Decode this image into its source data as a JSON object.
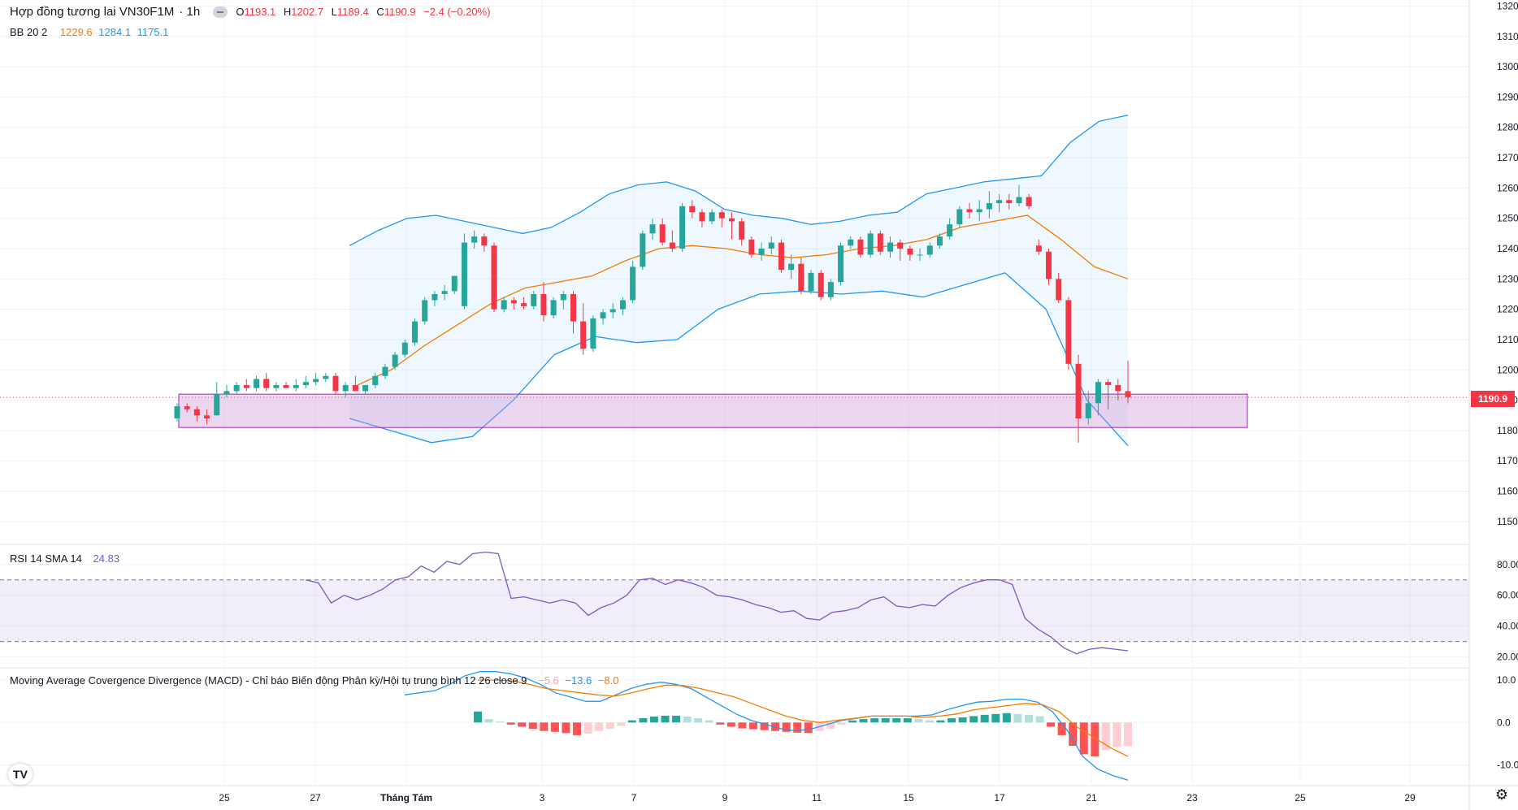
{
  "header": {
    "title": "Hợp đồng tương lai VN30F1M",
    "interval": "· 1h",
    "ohlc": {
      "o_label": "O",
      "o": "1193.1",
      "h_label": "H",
      "h": "1202.7",
      "l_label": "L",
      "l": "1189.4",
      "c_label": "C",
      "c": "1190.9",
      "change": "−2.4 (−0.20%)"
    }
  },
  "bb_legend": {
    "name": "BB 20 2",
    "mid": "1229.6",
    "upper": "1284.1",
    "lower": "1175.1"
  },
  "rsi_legend": {
    "name": "RSI 14 SMA 14",
    "value": "24.83"
  },
  "macd_legend": {
    "name": "Moving Average Covergence Divergence (MACD) - Chỉ báo Biến động Phân kỳ/Hội tụ trung bình 12 26 close 9",
    "hist": "−5.6",
    "macd": "−13.6",
    "signal": "−8.0"
  },
  "last_price_tag": "1190.9",
  "colors": {
    "up": "#26a69a",
    "down": "#f23645",
    "bb_basis": "#f57c00",
    "bb_band": "#2196f3",
    "rsi": "#7e57c2",
    "macd": "#2196f3",
    "signal": "#f57c00"
  },
  "chart_data": [
    {
      "type": "candlestick",
      "title": "Hợp đồng tương lai VN30F1M · 1h",
      "y_ticks": [
        "1150.0",
        "1160.0",
        "1170.0",
        "1180.0",
        "1190.0",
        "1200.0",
        "1210.0",
        "1220.0",
        "1230.0",
        "1240.0",
        "1250.0",
        "1260.0",
        "1270.0",
        "1280.0",
        "1290.0",
        "1300.0",
        "1310.0",
        "1320.0"
      ],
      "ylim": [
        1143,
        1322
      ],
      "x_ticks": [
        "25",
        "27",
        "Tháng Tám",
        "3",
        "7",
        "9",
        "11",
        "15",
        "17",
        "21",
        "23",
        "25",
        "29"
      ],
      "candles_ohlc": [
        [
          1184,
          1189,
          1183,
          1188
        ],
        [
          1188,
          1189,
          1186,
          1187
        ],
        [
          1187,
          1188,
          1183,
          1185
        ],
        [
          1185,
          1187,
          1182,
          1184
        ],
        [
          1185,
          1196,
          1185,
          1192
        ],
        [
          1192,
          1195,
          1191,
          1193
        ],
        [
          1193,
          1196,
          1192,
          1195
        ],
        [
          1195,
          1197,
          1193,
          1194
        ],
        [
          1194,
          1198,
          1193,
          1197
        ],
        [
          1197,
          1199,
          1193,
          1194
        ],
        [
          1194,
          1196,
          1193,
          1195
        ],
        [
          1195,
          1196,
          1194,
          1194
        ],
        [
          1194,
          1197,
          1193,
          1195
        ],
        [
          1195,
          1198,
          1194,
          1196
        ],
        [
          1196,
          1199,
          1195,
          1197
        ],
        [
          1197,
          1199,
          1196,
          1198
        ],
        [
          1198,
          1199,
          1192,
          1193
        ],
        [
          1193,
          1196,
          1191,
          1195
        ],
        [
          1195,
          1198,
          1194,
          1193
        ],
        [
          1193,
          1195,
          1192,
          1195
        ],
        [
          1195,
          1199,
          1194,
          1198
        ],
        [
          1198,
          1202,
          1197,
          1201
        ],
        [
          1201,
          1206,
          1200,
          1205
        ],
        [
          1205,
          1210,
          1204,
          1209
        ],
        [
          1209,
          1217,
          1208,
          1216
        ],
        [
          1216,
          1224,
          1215,
          1223
        ],
        [
          1223,
          1226,
          1221,
          1225
        ],
        [
          1225,
          1228,
          1223,
          1226
        ],
        [
          1226,
          1230,
          1225,
          1231
        ],
        [
          1221,
          1245,
          1220,
          1242
        ],
        [
          1242,
          1246,
          1240,
          1244
        ],
        [
          1244,
          1245,
          1239,
          1241
        ],
        [
          1241,
          1242,
          1219,
          1220
        ],
        [
          1220,
          1224,
          1219,
          1223
        ],
        [
          1223,
          1224,
          1220,
          1222
        ],
        [
          1222,
          1224,
          1220,
          1221
        ],
        [
          1221,
          1226,
          1220,
          1225
        ],
        [
          1225,
          1229,
          1216,
          1218
        ],
        [
          1218,
          1224,
          1217,
          1223
        ],
        [
          1223,
          1226,
          1220,
          1225
        ],
        [
          1225,
          1226,
          1212,
          1216
        ],
        [
          1216,
          1222,
          1205,
          1207
        ],
        [
          1207,
          1218,
          1206,
          1217
        ],
        [
          1217,
          1220,
          1215,
          1219
        ],
        [
          1219,
          1222,
          1217,
          1220
        ],
        [
          1220,
          1224,
          1218,
          1223
        ],
        [
          1223,
          1236,
          1222,
          1234
        ],
        [
          1234,
          1246,
          1233,
          1245
        ],
        [
          1245,
          1250,
          1243,
          1248
        ],
        [
          1248,
          1250,
          1241,
          1242
        ],
        [
          1242,
          1246,
          1239,
          1240
        ],
        [
          1240,
          1255,
          1239,
          1254
        ],
        [
          1254,
          1256,
          1250,
          1252
        ],
        [
          1252,
          1253,
          1247,
          1249
        ],
        [
          1249,
          1253,
          1248,
          1252
        ],
        [
          1252,
          1253,
          1247,
          1250
        ],
        [
          1250,
          1252,
          1243,
          1249
        ],
        [
          1249,
          1250,
          1241,
          1243
        ],
        [
          1243,
          1244,
          1237,
          1238
        ],
        [
          1238,
          1242,
          1236,
          1240
        ],
        [
          1240,
          1244,
          1238,
          1242
        ],
        [
          1242,
          1243,
          1232,
          1233
        ],
        [
          1233,
          1238,
          1230,
          1235
        ],
        [
          1235,
          1237,
          1225,
          1226
        ],
        [
          1226,
          1233,
          1225,
          1232
        ],
        [
          1232,
          1233,
          1223,
          1224
        ],
        [
          1224,
          1230,
          1223,
          1229
        ],
        [
          1229,
          1242,
          1228,
          1241
        ],
        [
          1241,
          1244,
          1240,
          1243
        ],
        [
          1243,
          1244,
          1237,
          1238
        ],
        [
          1238,
          1246,
          1237,
          1245
        ],
        [
          1245,
          1246,
          1238,
          1239
        ],
        [
          1239,
          1244,
          1237,
          1242
        ],
        [
          1242,
          1243,
          1236,
          1240
        ],
        [
          1240,
          1241,
          1236,
          1238
        ],
        [
          1238,
          1240,
          1236,
          1238
        ],
        [
          1238,
          1242,
          1237,
          1241
        ],
        [
          1241,
          1245,
          1240,
          1244
        ],
        [
          1244,
          1250,
          1243,
          1248
        ],
        [
          1248,
          1254,
          1247,
          1253
        ],
        [
          1253,
          1255,
          1250,
          1252
        ],
        [
          1252,
          1256,
          1249,
          1253
        ],
        [
          1253,
          1259,
          1250,
          1255
        ],
        [
          1255,
          1258,
          1252,
          1256
        ],
        [
          1256,
          1258,
          1253,
          1255
        ],
        [
          1255,
          1261,
          1254,
          1257
        ],
        [
          1257,
          1258,
          1253,
          1254
        ],
        [
          1241,
          1243,
          1238,
          1239
        ],
        [
          1239,
          1240,
          1228,
          1230
        ],
        [
          1230,
          1232,
          1222,
          1223
        ],
        [
          1223,
          1224,
          1200,
          1202
        ],
        [
          1202,
          1205,
          1176,
          1184
        ],
        [
          1184,
          1193,
          1182,
          1189
        ],
        [
          1189,
          1197,
          1185,
          1196
        ],
        [
          1196,
          1197,
          1187,
          1195
        ],
        [
          1195,
          1197,
          1190,
          1193
        ],
        [
          1193,
          1203,
          1189,
          1191
        ]
      ],
      "candle_day_index": [
        1,
        2,
        2,
        2,
        2,
        3,
        3,
        3,
        3,
        3,
        3,
        3,
        3,
        4,
        4,
        4,
        4,
        4,
        4,
        4,
        4,
        5,
        5,
        5,
        5,
        5,
        5,
        5,
        5,
        6,
        6,
        6,
        6,
        6,
        6,
        6,
        6,
        7,
        7,
        7,
        7,
        7,
        7,
        7,
        7,
        8,
        8,
        8,
        8,
        8,
        8,
        8,
        8,
        9,
        9,
        9,
        9,
        9,
        9,
        9,
        9,
        10,
        10,
        10,
        10,
        10,
        10,
        10,
        10,
        11,
        11,
        11,
        11,
        11,
        11,
        11,
        11,
        12,
        12,
        12,
        12,
        12,
        12,
        12,
        12,
        13,
        13,
        13,
        13,
        14,
        14,
        14,
        14,
        14,
        15,
        15,
        15
      ],
      "bb_upper": [
        1241,
        1246,
        1250,
        1251,
        1249,
        1247,
        1245,
        1247,
        1252,
        1258,
        1261,
        1262,
        1259,
        1253,
        1251,
        1250,
        1248,
        1249,
        1251,
        1252,
        1258,
        1260,
        1262,
        1263,
        1264,
        1275,
        1282,
        1284
      ],
      "bb_basis": [
        1195,
        1200,
        1208,
        1215,
        1222,
        1227,
        1229,
        1231,
        1236,
        1240,
        1241,
        1240,
        1238,
        1237,
        1238,
        1240,
        1241,
        1243,
        1247,
        1249,
        1251,
        1243,
        1234,
        1230
      ],
      "bb_lower": [
        1184,
        1180,
        1176,
        1178,
        1190,
        1205,
        1211,
        1209,
        1210,
        1220,
        1225,
        1226,
        1225,
        1226,
        1224,
        1228,
        1232,
        1220,
        1190,
        1175
      ],
      "zone_box": {
        "top": 1192.0,
        "bottom": 1181.0
      },
      "last_price": 1190.9
    },
    {
      "type": "line",
      "title": "RSI 14 SMA 14",
      "y_ticks": [
        "20.00",
        "40.00",
        "60.00",
        "80.00"
      ],
      "ylim": [
        14,
        92
      ],
      "band": [
        30,
        70
      ],
      "rsi_values": [
        70,
        68,
        55,
        60,
        57,
        60,
        64,
        70,
        72,
        79,
        75,
        82,
        80,
        87,
        88,
        87,
        58,
        59,
        57,
        55,
        57,
        55,
        47,
        52,
        55,
        60,
        70,
        71,
        67,
        70,
        68,
        65,
        60,
        59,
        57,
        54,
        52,
        49,
        50,
        45,
        44,
        49,
        50,
        52,
        57,
        59,
        53,
        52,
        54,
        53,
        60,
        65,
        68,
        70,
        70,
        67,
        45,
        38,
        33,
        26,
        22,
        25,
        26,
        25,
        24
      ]
    },
    {
      "type": "bar+line",
      "title": "MACD 12 26 close 9",
      "y_ticks": [
        "-10.0",
        "0.0",
        "10.0"
      ],
      "ylim": [
        -14.5,
        12.5
      ],
      "histogram": [
        2.6,
        0.8,
        0.2,
        -0.5,
        -1.0,
        -1.5,
        -2.0,
        -2.2,
        -2.5,
        -3.0,
        -2.6,
        -2.0,
        -1.5,
        -0.8,
        0.5,
        1.0,
        1.4,
        1.6,
        1.6,
        1.4,
        1.0,
        0.5,
        -0.5,
        -1.0,
        -1.4,
        -1.6,
        -1.8,
        -2.0,
        -2.2,
        -2.4,
        -2.5,
        -2.0,
        -1.5,
        -0.5,
        0.5,
        0.8,
        1.0,
        1.0,
        1.0,
        1.0,
        0.8,
        0.5,
        0.5,
        1.0,
        1.2,
        1.5,
        1.8,
        2.0,
        2.2,
        2.0,
        1.8,
        1.5,
        -1.0,
        -3.0,
        -5.5,
        -7.5,
        -8.0,
        -6.5,
        -5.8,
        -5.6
      ],
      "macd_line": [
        6.5,
        7.0,
        7.5,
        9.0,
        11.0,
        12.0,
        12.0,
        11.5,
        10.5,
        9.0,
        7.0,
        6.0,
        5.0,
        5.0,
        6.5,
        8.0,
        9.0,
        9.5,
        9.0,
        8.0,
        6.0,
        4.0,
        2.0,
        0.5,
        -0.5,
        -1.5,
        -2.0,
        -1.5,
        -0.5,
        0.5,
        1.0,
        1.5,
        1.5,
        1.5,
        1.5,
        1.8,
        3.0,
        4.0,
        4.8,
        5.0,
        5.5,
        5.5,
        4.8,
        2.5,
        -2.0,
        -8.0,
        -11.0,
        -12.5,
        -13.6
      ],
      "signal_line": [
        10.0,
        10.0,
        9.8,
        9.0,
        8.0,
        7.5,
        7.0,
        6.5,
        6.2,
        7.0,
        8.0,
        8.8,
        8.7,
        8.0,
        7.0,
        6.0,
        4.5,
        3.0,
        1.5,
        0.5,
        0.0,
        0.5,
        1.0,
        1.5,
        1.5,
        1.5,
        1.2,
        1.5,
        2.0,
        3.0,
        3.5,
        4.0,
        4.5,
        4.2,
        2.5,
        -1.0,
        -3.5,
        -6.0,
        -8.0
      ]
    }
  ]
}
